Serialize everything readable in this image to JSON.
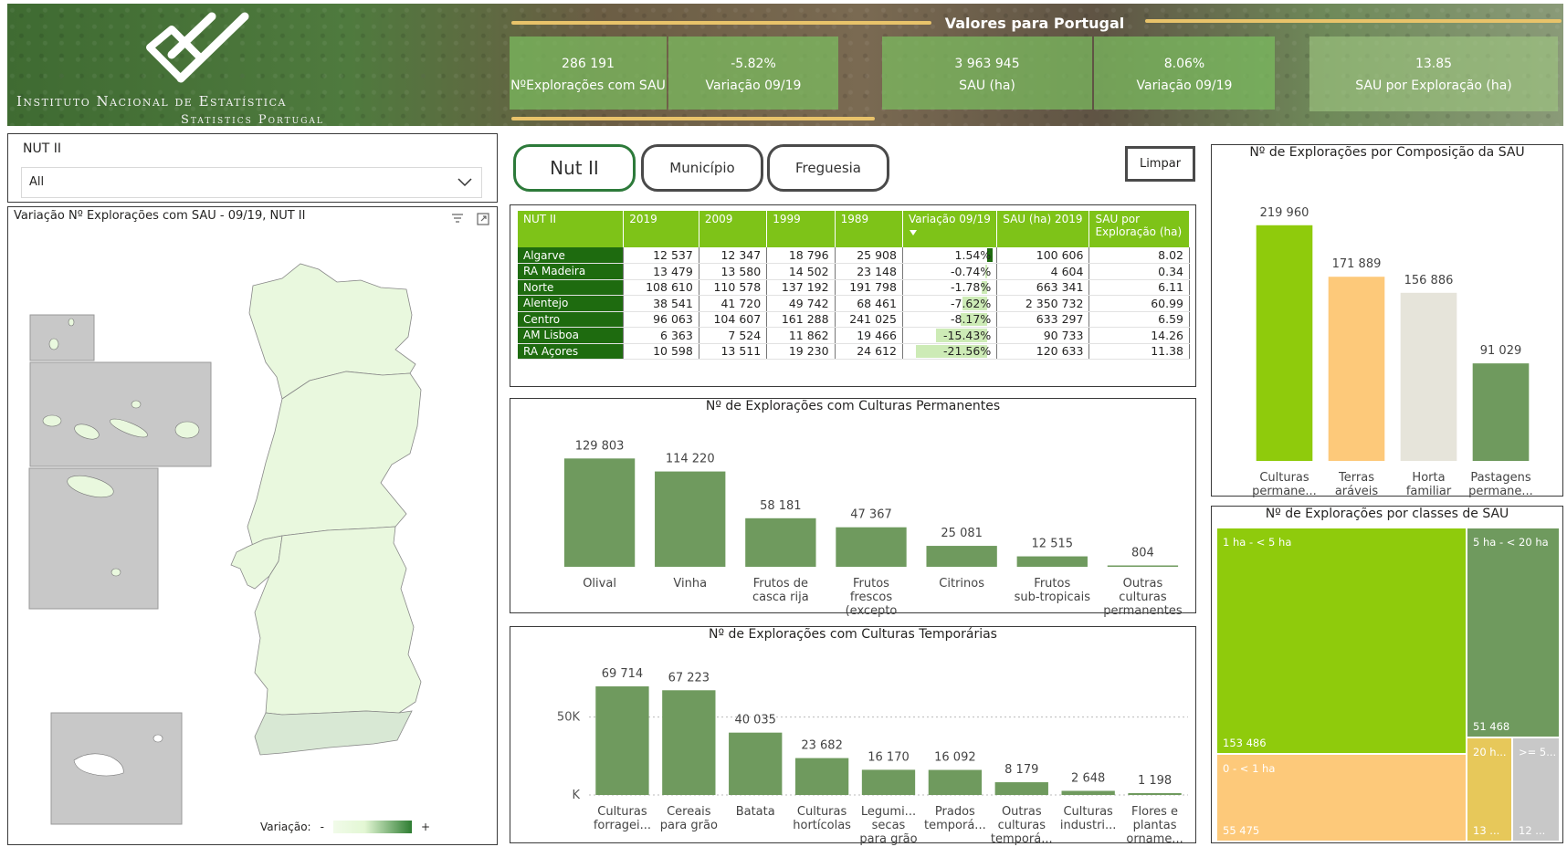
{
  "header": {
    "logo_line1": "Instituto Nacional de Estatística",
    "logo_line2": "Statistics Portugal",
    "kpi_title": "Valores para Portugal",
    "kpis": [
      {
        "value": "286 191",
        "label": "NºExplorações com SAU"
      },
      {
        "value": "-5.82%",
        "label": "Variação 09/19"
      },
      {
        "value": "3 963 945",
        "label": "SAU (ha)"
      },
      {
        "value": "8.06%",
        "label": "Variação 09/19"
      },
      {
        "value": "13.85",
        "label": "SAU por Exploração (ha)"
      }
    ]
  },
  "slicer": {
    "label": "NUT II",
    "value": "All"
  },
  "map": {
    "title": "Variação Nº Explorações com SAU - 09/19, NUT II",
    "legend_label": "Variação:",
    "legend_min": "-",
    "legend_max": "+",
    "colors": {
      "mainland": "#e9f8de",
      "algarve": "#d8e8d4",
      "islands_bg": "#c8c8c8"
    }
  },
  "nav": {
    "nut2": "Nut II",
    "municipio": "Município",
    "freguesia": "Freguesia",
    "limpar": "Limpar"
  },
  "table": {
    "columns": [
      "NUT II",
      "2019",
      "2009",
      "1999",
      "1989",
      "Variação 09/19",
      "SAU (ha) 2019",
      "SAU por Exploração (ha)"
    ],
    "rows": [
      {
        "name": "Algarve",
        "y2019": "12 537",
        "y2009": "12 347",
        "y1999": "18 796",
        "y1989": "25 908",
        "var": "1.54%",
        "var_value": 1.54,
        "sau": "100 606",
        "sau_exp": "8.02"
      },
      {
        "name": "RA Madeira",
        "y2019": "13 479",
        "y2009": "13 580",
        "y1999": "14 502",
        "y1989": "23 148",
        "var": "-0.74%",
        "var_value": -0.74,
        "sau": "4 604",
        "sau_exp": "0.34"
      },
      {
        "name": "Norte",
        "y2019": "108 610",
        "y2009": "110 578",
        "y1999": "137 192",
        "y1989": "191 798",
        "var": "-1.78%",
        "var_value": -1.78,
        "sau": "663 341",
        "sau_exp": "6.11"
      },
      {
        "name": "Alentejo",
        "y2019": "38 541",
        "y2009": "41 720",
        "y1999": "49 742",
        "y1989": "68 461",
        "var": "-7.62%",
        "var_value": -7.62,
        "sau": "2 350 732",
        "sau_exp": "60.99"
      },
      {
        "name": "Centro",
        "y2019": "96 063",
        "y2009": "104 607",
        "y1999": "161 288",
        "y1989": "241 025",
        "var": "-8.17%",
        "var_value": -8.17,
        "sau": "633 297",
        "sau_exp": "6.59"
      },
      {
        "name": "AM Lisboa",
        "y2019": "6 363",
        "y2009": "7 524",
        "y1999": "11 862",
        "y1989": "19 466",
        "var": "-15.43%",
        "var_value": -15.43,
        "sau": "90 733",
        "sau_exp": "14.26"
      },
      {
        "name": "RA Açores",
        "y2019": "10 598",
        "y2009": "13 511",
        "y1999": "19 230",
        "y1989": "24 612",
        "var": "-21.56%",
        "var_value": -21.56,
        "sau": "120 633",
        "sau_exp": "11.38"
      }
    ]
  },
  "chart_data": [
    {
      "type": "bar",
      "title": "Nº de Explorações com Culturas Permanentes",
      "categories": [
        [
          "Olival"
        ],
        [
          "Vinha"
        ],
        [
          "Frutos de",
          "casca rija"
        ],
        [
          "Frutos",
          "frescos",
          "(excepto"
        ],
        [
          "Citrinos"
        ],
        [
          "Frutos",
          "sub-tropicais"
        ],
        [
          "Outras",
          "culturas",
          "permanentes"
        ]
      ],
      "values": [
        129803,
        114220,
        58181,
        47367,
        25081,
        12515,
        804
      ],
      "labels": [
        "129 803",
        "114 220",
        "58 181",
        "47 367",
        "25 081",
        "12 515",
        "804"
      ],
      "ylim": [
        0,
        140000
      ],
      "color": "#6f9a5e"
    },
    {
      "type": "bar",
      "title": "Nº de Explorações com Culturas Temporárias",
      "categories": [
        [
          "Culturas",
          "forragei..."
        ],
        [
          "Cereais",
          "para grão"
        ],
        [
          "Batata"
        ],
        [
          "Culturas",
          "hortícolas"
        ],
        [
          "Legumi...",
          "secas",
          "para grão"
        ],
        [
          "Prados",
          "temporá..."
        ],
        [
          "Outras",
          "culturas",
          "temporá..."
        ],
        [
          "Culturas",
          "industri..."
        ],
        [
          "Flores e",
          "plantas",
          "orname..."
        ]
      ],
      "values": [
        69714,
        67223,
        40035,
        23682,
        16170,
        16092,
        8179,
        2648,
        1198
      ],
      "labels": [
        "69 714",
        "67 223",
        "40 035",
        "23 682",
        "16 170",
        "16 092",
        "8 179",
        "2 648",
        "1 198"
      ],
      "yticks": [
        "50K",
        "K"
      ],
      "ylim": [
        0,
        75000
      ],
      "color": "#6f9a5e"
    },
    {
      "type": "bar",
      "title": "Nº de Explorações por Composição da SAU",
      "categories": [
        [
          "Culturas",
          "permane..."
        ],
        [
          "Terras",
          "aráveis"
        ],
        [
          "Horta",
          "familiar"
        ],
        [
          "Pastagens",
          "permane..."
        ]
      ],
      "values": [
        219960,
        171889,
        156886,
        91029
      ],
      "labels": [
        "219 960",
        "171 889",
        "156 886",
        "91 029"
      ],
      "colors": [
        "#8fcb0c",
        "#fdc97a",
        "#e6e4da",
        "#6f9a5e"
      ],
      "ylim": [
        0,
        230000
      ]
    },
    {
      "type": "heatmap",
      "title": "Nº de Explorações por classes de SAU",
      "tiles": [
        {
          "name": "1 ha - < 5 ha",
          "label": "1 ha - < 5 ha",
          "value": 153486,
          "value_label": "153 486",
          "color": "#8fcb0c"
        },
        {
          "name": "5 ha - < 20 ha",
          "label": "5 ha - < 20 ha",
          "value": 51468,
          "value_label": "51 468",
          "color": "#6f9a5e"
        },
        {
          "name": "0 - < 1 ha",
          "label": "0 - < 1 ha",
          "value": 55475,
          "value_label": "55 475",
          "color": "#fdc97a"
        },
        {
          "name": "20 ha",
          "label": "20 h...",
          "value_label": "13 ...",
          "color": "#e7c85a"
        },
        {
          "name": ">= 50 ha",
          "label": ">= 5...",
          "value_label": "12 ...",
          "color": "#c8c8c8"
        }
      ]
    }
  ]
}
